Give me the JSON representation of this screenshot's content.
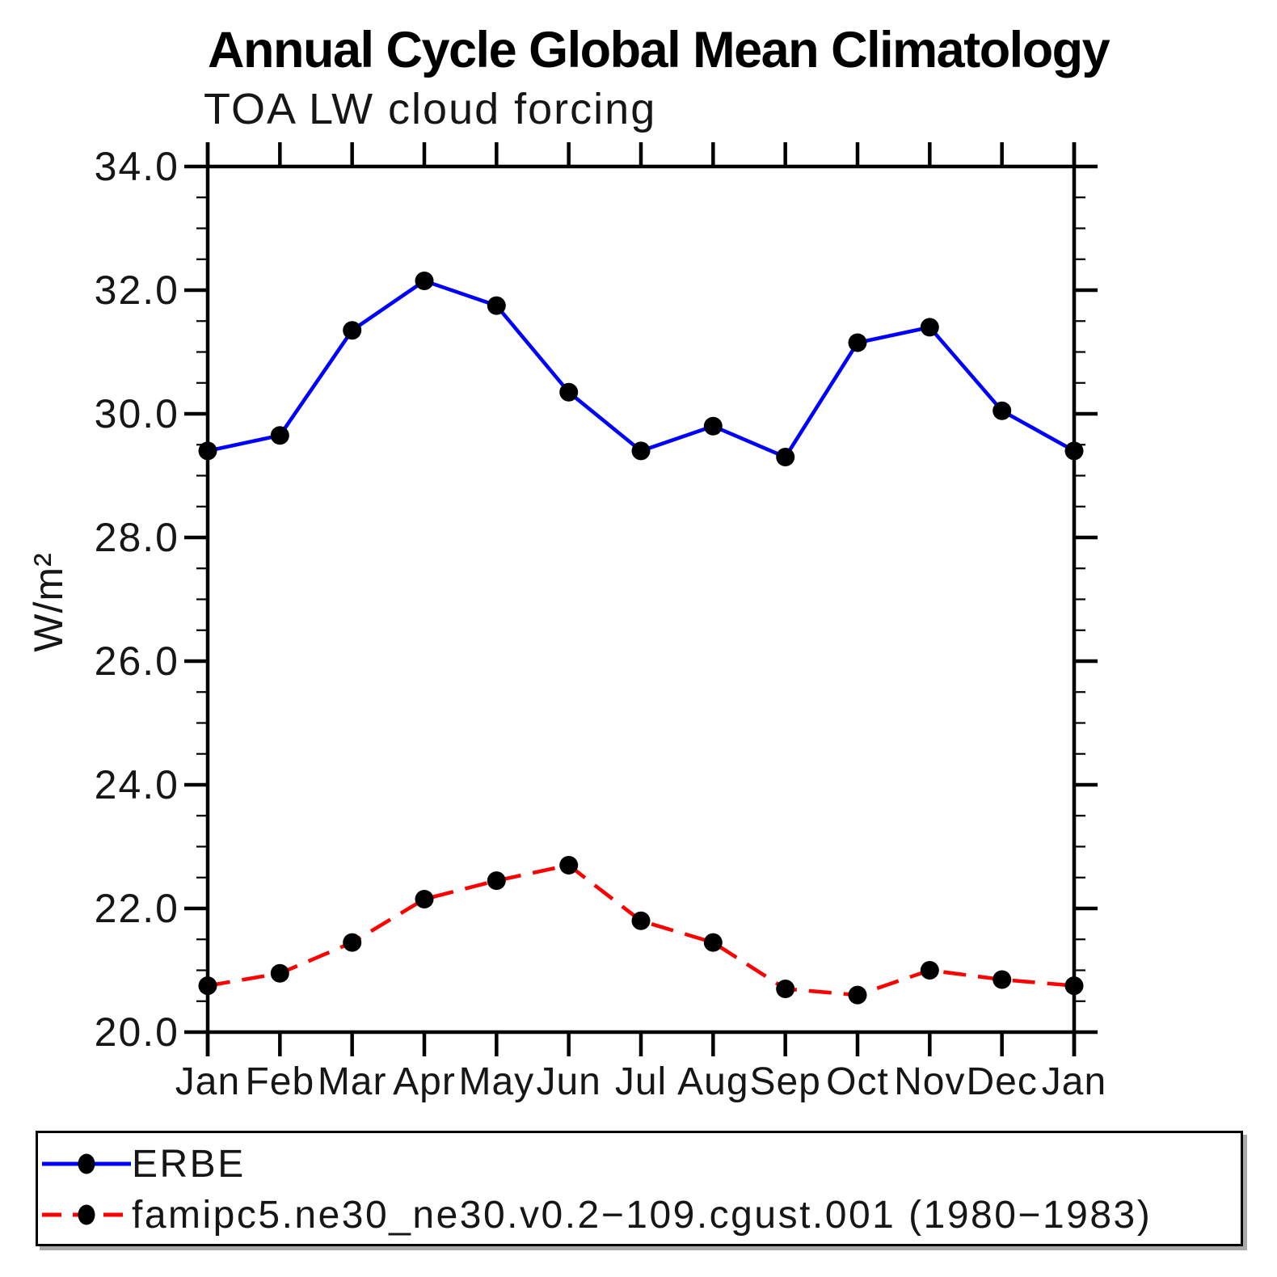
{
  "title": "Annual Cycle Global Mean Climatology",
  "subtitle": "TOA LW cloud forcing",
  "chart_data": {
    "type": "line",
    "title": "Annual Cycle Global Mean Climatology",
    "subtitle": "TOA LW cloud forcing",
    "xlabel": "",
    "ylabel": "W/m²",
    "categories": [
      "Jan",
      "Feb",
      "Mar",
      "Apr",
      "May",
      "Jun",
      "Jul",
      "Aug",
      "Sep",
      "Oct",
      "Nov",
      "Dec",
      "Jan"
    ],
    "ylim": [
      20.0,
      34.0
    ],
    "ytick_major_step": 2.0,
    "ytick_minor_step": 0.5,
    "ytick_labels": [
      "20.0",
      "22.0",
      "24.0",
      "26.0",
      "28.0",
      "30.0",
      "32.0",
      "34.0"
    ],
    "grid": false,
    "legend_position": "bottom-left-box",
    "axis_color": "#000000",
    "marker_color": "#000000",
    "series": [
      {
        "name": "ERBE",
        "color": "#0000ff",
        "style": "solid",
        "marker": "filled-circle",
        "values": [
          29.4,
          29.65,
          31.35,
          32.15,
          31.75,
          30.35,
          29.4,
          29.8,
          29.3,
          31.15,
          31.4,
          30.05,
          29.4
        ]
      },
      {
        "name": "famipc5.ne30_ne30.v0.2−109.cgust.001 (1980−1983)",
        "color": "#ff0000",
        "style": "dashed",
        "marker": "filled-circle",
        "values": [
          20.75,
          20.95,
          21.45,
          22.15,
          22.45,
          22.7,
          21.8,
          21.45,
          20.7,
          20.6,
          21.0,
          20.85,
          20.75
        ]
      }
    ]
  }
}
